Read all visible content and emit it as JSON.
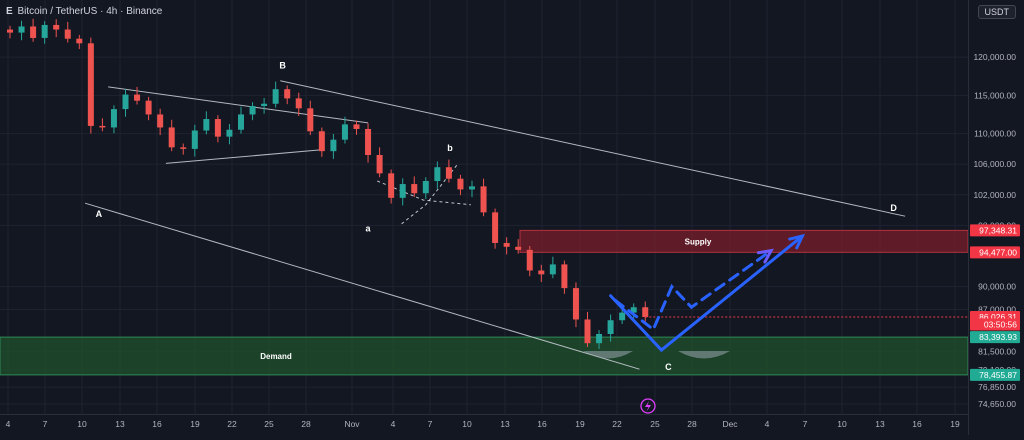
{
  "header": {
    "title": "Bitcoin / TetherUS · 4h · Binance",
    "mark": "E"
  },
  "currency_label": "USDT",
  "colors": {
    "background": "#131722",
    "grid": "#1f2330",
    "up": "#26a69a",
    "down": "#ef5350",
    "supply_zone": "#7a1f2b",
    "demand_zone": "#1f4d2c",
    "projection": "#2962ff",
    "trendline": "#cfd3dc",
    "price_tag": "#f23645",
    "demand_tag": "#22ab94"
  },
  "zones": {
    "supply": {
      "label": "Supply",
      "top": 97348.31,
      "bottom": 94477.0
    },
    "demand": {
      "label": "Demand",
      "top": 83393.93,
      "bottom": 78455.87
    }
  },
  "price_tags": [
    {
      "text": "97,348.31",
      "value": 97348.31,
      "color": "#f23645"
    },
    {
      "text": "94,477.00",
      "value": 94477.0,
      "color": "#f23645"
    },
    {
      "text": "86,026.31",
      "value": 86026.31,
      "color": "#f23645"
    },
    {
      "text": "03:50:56",
      "value": 85050,
      "color": "#f23645"
    },
    {
      "text": "83,393.93",
      "value": 83393.93,
      "color": "#22ab94"
    },
    {
      "text": "78,455.87",
      "value": 78455.87,
      "color": "#22ab94"
    }
  ],
  "wave_labels": [
    "A",
    "B",
    "a",
    "b",
    "C",
    "D"
  ],
  "chart_data": {
    "type": "line",
    "title": "Bitcoin / TetherUS · 4h · Binance",
    "xlabel": "",
    "ylabel": "",
    "ylim": [
      73800,
      125500
    ],
    "x_ticks": [
      "4",
      "7",
      "10",
      "13",
      "16",
      "19",
      "22",
      "25",
      "28",
      "Nov",
      "4",
      "7",
      "10",
      "13",
      "16",
      "19",
      "22",
      "25",
      "28",
      "Dec",
      "4",
      "7",
      "10",
      "13",
      "16",
      "19"
    ],
    "y_ticks": [
      120000,
      115000,
      110000,
      106000,
      102000,
      98000,
      90000,
      87000,
      81500,
      79100,
      76850,
      74650
    ],
    "y_tick_labels": [
      "120,000.00",
      "115,000.00",
      "110,000.00",
      "106,000.00",
      "102,000.00",
      "98,000.00",
      "90,000.00",
      "87,000.00",
      "81,500.00",
      "79,100.00",
      "76,850.00",
      "74,650.00"
    ],
    "grid": true,
    "series": [
      {
        "values": [
          [
            0,
            123200
          ],
          [
            1,
            124000
          ],
          [
            2,
            122500
          ],
          [
            3,
            124200
          ],
          [
            4,
            123600
          ],
          [
            5,
            122400
          ],
          [
            6,
            121800
          ],
          [
            7,
            111000
          ],
          [
            8,
            110800
          ],
          [
            9,
            113200
          ],
          [
            10,
            115100
          ],
          [
            11,
            114300
          ],
          [
            12,
            112500
          ],
          [
            13,
            110800
          ],
          [
            14,
            108200
          ],
          [
            15,
            108000
          ],
          [
            16,
            110400
          ],
          [
            17,
            111900
          ],
          [
            18,
            109600
          ],
          [
            19,
            110500
          ],
          [
            20,
            112500
          ],
          [
            21,
            113600
          ],
          [
            22,
            113900
          ],
          [
            23,
            115800
          ],
          [
            24,
            114600
          ],
          [
            25,
            113300
          ],
          [
            26,
            110300
          ],
          [
            27,
            107700
          ],
          [
            28,
            109200
          ],
          [
            29,
            111200
          ],
          [
            30,
            110600
          ],
          [
            31,
            107200
          ],
          [
            32,
            104800
          ],
          [
            33,
            101600
          ],
          [
            34,
            103400
          ],
          [
            35,
            102200
          ],
          [
            36,
            103800
          ],
          [
            37,
            105600
          ],
          [
            38,
            104100
          ],
          [
            39,
            102700
          ],
          [
            40,
            103100
          ],
          [
            41,
            99700
          ],
          [
            42,
            95700
          ],
          [
            43,
            95200
          ],
          [
            44,
            94800
          ],
          [
            45,
            92100
          ],
          [
            46,
            91600
          ],
          [
            47,
            92900
          ],
          [
            48,
            89800
          ],
          [
            49,
            85700
          ],
          [
            50,
            82600
          ],
          [
            51,
            83800
          ],
          [
            52,
            85600
          ],
          [
            53,
            86600
          ],
          [
            54,
            87300
          ],
          [
            55,
            86026.31
          ]
        ]
      }
    ],
    "annotations": [
      {
        "label": "A",
        "x": 7.7,
        "y": 99100
      },
      {
        "label": "B",
        "x": 23.6,
        "y": 118500
      },
      {
        "label": "a",
        "x": 31.0,
        "y": 97200
      },
      {
        "label": "b",
        "x": 38.1,
        "y": 107700
      },
      {
        "label": "C",
        "x": 57.0,
        "y": 79100
      },
      {
        "label": "D",
        "x": 76.5,
        "y": 99900
      }
    ],
    "trendlines": [
      {
        "style": "solid",
        "points": [
          [
            6.5,
            100900
          ],
          [
            54.5,
            79200
          ]
        ]
      },
      {
        "style": "solid",
        "points": [
          [
            23.4,
            116900
          ],
          [
            77.5,
            99200
          ]
        ]
      },
      {
        "style": "solid",
        "points": [
          [
            8.5,
            116100
          ],
          [
            31.0,
            111400
          ]
        ]
      },
      {
        "style": "solid",
        "points": [
          [
            13.5,
            106100
          ],
          [
            27.1,
            107900
          ]
        ]
      },
      {
        "style": "dashed",
        "points": [
          [
            31.8,
            103800
          ],
          [
            35.8,
            101300
          ],
          [
            39.9,
            100700
          ]
        ]
      },
      {
        "style": "dashed",
        "points": [
          [
            33.9,
            98200
          ],
          [
            36.0,
            100700
          ],
          [
            38.7,
            105900
          ]
        ]
      }
    ],
    "projections": [
      {
        "style": "solid",
        "points": [
          [
            52.0,
            88800
          ],
          [
            56.4,
            81700
          ],
          [
            68.6,
            96600
          ]
        ]
      },
      {
        "style": "dashed",
        "points": [
          [
            52.4,
            88200
          ],
          [
            55.7,
            84400
          ],
          [
            57.3,
            90000
          ],
          [
            59.0,
            87300
          ],
          [
            65.9,
            94700
          ]
        ]
      }
    ]
  }
}
